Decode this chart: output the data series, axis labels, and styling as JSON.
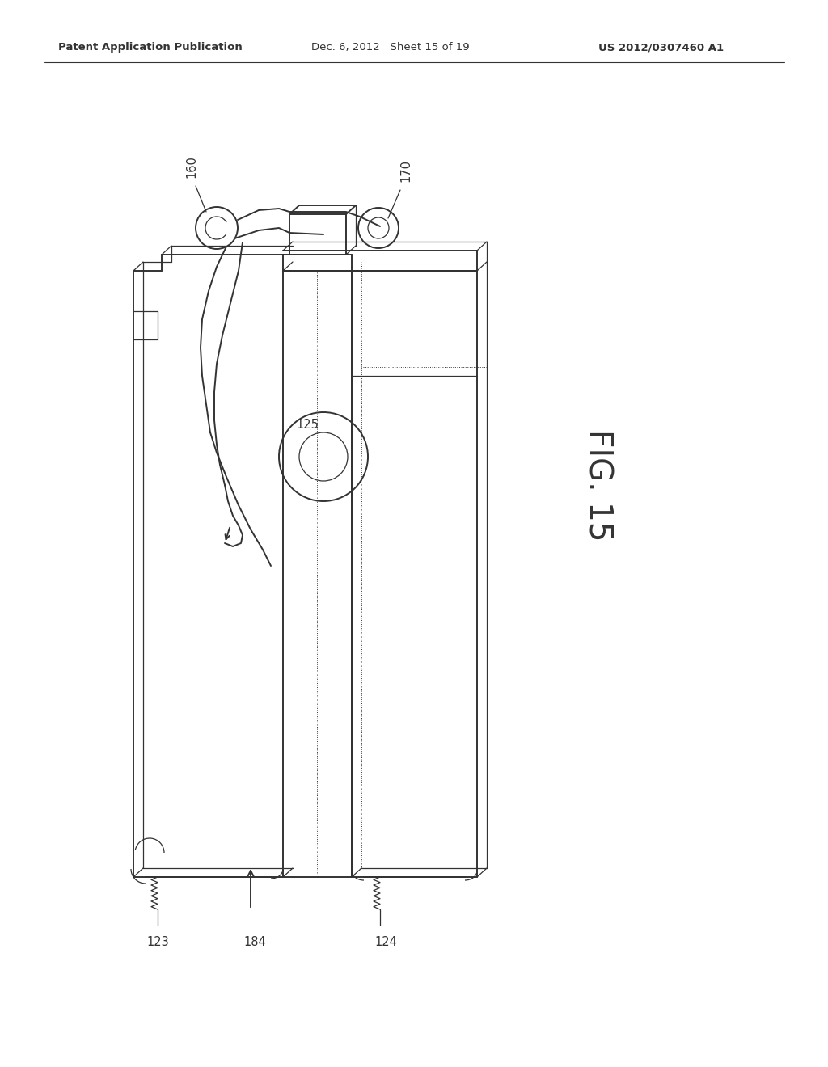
{
  "bg_color": "#ffffff",
  "line_color": "#333333",
  "header_left": "Patent Application Publication",
  "header_center": "Dec. 6, 2012   Sheet 15 of 19",
  "header_right": "US 2012/0307460 A1",
  "fig_label": "FIG. 15",
  "lw_main": 1.4,
  "lw_thin": 0.9,
  "lw_dot": 0.7
}
